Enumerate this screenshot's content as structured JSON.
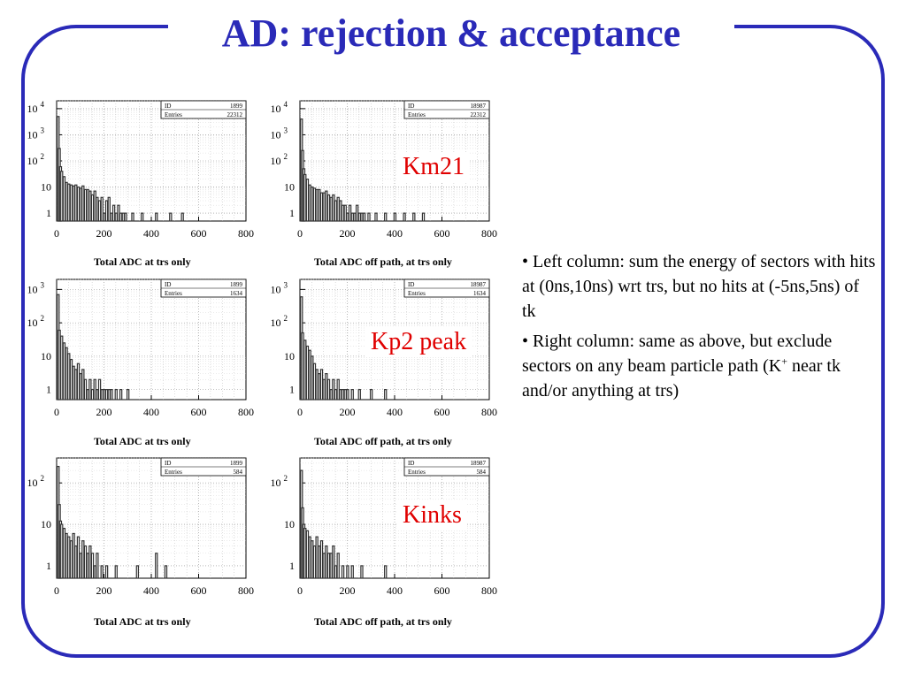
{
  "slide": {
    "title": "AD: rejection & acceptance",
    "frame_color": "#2a2ab8",
    "title_color": "#2a2ab8",
    "tag_color": "#e00000"
  },
  "tags": [
    "Km21",
    "Kp2 peak",
    "Kinks"
  ],
  "bullets": [
    {
      "prefix": "• ",
      "text": "Left column: sum the energy of sectors with hits at (0ns,10ns) wrt trs, but no hits at (-5ns,5ns) of tk"
    },
    {
      "prefix": "• ",
      "text_before_sup": "Right column: same as above, but exclude sectors on any beam particle path (K",
      "sup": "+",
      "text_after_sup": " near tk and/or anything at trs)"
    }
  ],
  "chart_data": [
    {
      "type": "bar",
      "xlabel": "Total ADC at trs only",
      "xlim": [
        0,
        800
      ],
      "x_ticks": [
        "0",
        "200",
        "400",
        "600",
        "800"
      ],
      "y_scale": "log",
      "y_ticks": [
        "1",
        "10",
        "10^2",
        "10^3",
        "10^4"
      ],
      "ylim": [
        0.5,
        20000
      ],
      "grid": true,
      "stats": {
        "ID": "1899",
        "Entries": "22312"
      },
      "x": [
        5,
        10,
        15,
        20,
        30,
        40,
        50,
        60,
        70,
        80,
        90,
        100,
        110,
        120,
        130,
        140,
        150,
        160,
        170,
        180,
        190,
        200,
        210,
        220,
        230,
        240,
        250,
        260,
        270,
        280,
        290,
        320,
        360,
        420,
        480,
        530
      ],
      "values": [
        5000,
        300,
        60,
        40,
        25,
        15,
        13,
        12,
        11,
        12,
        10,
        9,
        11,
        8,
        8,
        7,
        5,
        7,
        4,
        3,
        4,
        1,
        3,
        4,
        1,
        2,
        1,
        2,
        1,
        1,
        1,
        1,
        1,
        1,
        1,
        1
      ]
    },
    {
      "type": "bar",
      "xlabel": "Total ADC off path, at trs only",
      "xlim": [
        0,
        800
      ],
      "x_ticks": [
        "0",
        "200",
        "400",
        "600",
        "800"
      ],
      "y_scale": "log",
      "y_ticks": [
        "1",
        "10",
        "10^2",
        "10^3",
        "10^4"
      ],
      "ylim": [
        0.5,
        20000
      ],
      "grid": true,
      "stats": {
        "ID": "18987",
        "Entries": "22312"
      },
      "x": [
        5,
        10,
        15,
        20,
        30,
        40,
        50,
        60,
        70,
        80,
        90,
        100,
        110,
        120,
        130,
        140,
        150,
        160,
        170,
        180,
        190,
        200,
        210,
        220,
        230,
        240,
        250,
        260,
        270,
        290,
        320,
        360,
        400,
        440,
        480,
        520
      ],
      "values": [
        4000,
        250,
        50,
        30,
        20,
        12,
        10,
        9,
        8,
        8,
        6,
        6,
        7,
        5,
        4,
        5,
        3,
        4,
        3,
        2,
        2,
        1,
        2,
        1,
        1,
        2,
        1,
        1,
        1,
        1,
        1,
        1,
        1,
        1,
        1,
        1
      ]
    },
    {
      "type": "bar",
      "xlabel": "Total ADC at trs only",
      "xlim": [
        0,
        800
      ],
      "x_ticks": [
        "0",
        "200",
        "400",
        "600",
        "800"
      ],
      "y_scale": "log",
      "y_ticks": [
        "1",
        "10",
        "10^2",
        "10^3"
      ],
      "ylim": [
        0.5,
        2000
      ],
      "grid": true,
      "stats": {
        "ID": "1899",
        "Entries": "1634"
      },
      "x": [
        5,
        10,
        20,
        30,
        40,
        50,
        60,
        70,
        80,
        90,
        100,
        110,
        120,
        130,
        140,
        150,
        160,
        170,
        180,
        190,
        200,
        210,
        220,
        230,
        250,
        270,
        300
      ],
      "values": [
        700,
        60,
        40,
        25,
        18,
        12,
        8,
        5,
        4,
        6,
        3,
        4,
        2,
        1,
        2,
        1,
        2,
        1,
        2,
        1,
        1,
        1,
        1,
        1,
        1,
        1,
        1
      ]
    },
    {
      "type": "bar",
      "xlabel": "Total ADC off path, at trs only",
      "xlim": [
        0,
        800
      ],
      "x_ticks": [
        "0",
        "200",
        "400",
        "600",
        "800"
      ],
      "y_scale": "log",
      "y_ticks": [
        "1",
        "10",
        "10^2",
        "10^3"
      ],
      "ylim": [
        0.5,
        2000
      ],
      "grid": true,
      "stats": {
        "ID": "18987",
        "Entries": "1634"
      },
      "x": [
        5,
        10,
        20,
        30,
        40,
        50,
        60,
        70,
        80,
        90,
        100,
        110,
        120,
        130,
        140,
        150,
        160,
        170,
        180,
        190,
        200,
        220,
        250,
        300,
        360
      ],
      "values": [
        600,
        50,
        30,
        20,
        15,
        10,
        6,
        4,
        3,
        4,
        2,
        3,
        2,
        1,
        2,
        1,
        2,
        1,
        1,
        1,
        1,
        1,
        1,
        1,
        1
      ]
    },
    {
      "type": "bar",
      "xlabel": "Total ADC at trs only",
      "xlim": [
        0,
        800
      ],
      "x_ticks": [
        "0",
        "200",
        "400",
        "600",
        "800"
      ],
      "y_scale": "log",
      "y_ticks": [
        "1",
        "10",
        "10^2"
      ],
      "ylim": [
        0.5,
        400
      ],
      "grid": true,
      "stats": {
        "ID": "1899",
        "Entries": "584"
      },
      "x": [
        5,
        10,
        15,
        20,
        30,
        40,
        50,
        60,
        70,
        80,
        90,
        100,
        110,
        120,
        130,
        140,
        150,
        160,
        170,
        190,
        210,
        250,
        340,
        420,
        460
      ],
      "values": [
        250,
        30,
        12,
        10,
        8,
        6,
        5,
        4,
        6,
        3,
        5,
        2,
        4,
        3,
        2,
        3,
        2,
        1,
        2,
        1,
        1,
        1,
        1,
        2,
        1
      ]
    },
    {
      "type": "bar",
      "xlabel": "Total ADC off path, at trs only",
      "xlim": [
        0,
        800
      ],
      "x_ticks": [
        "0",
        "200",
        "400",
        "600",
        "800"
      ],
      "y_scale": "log",
      "y_ticks": [
        "1",
        "10",
        "10^2"
      ],
      "ylim": [
        0.5,
        400
      ],
      "grid": true,
      "stats": {
        "ID": "18987",
        "Entries": "584"
      },
      "x": [
        5,
        10,
        15,
        20,
        30,
        40,
        50,
        60,
        70,
        80,
        90,
        100,
        110,
        120,
        130,
        140,
        150,
        160,
        180,
        200,
        220,
        260,
        360
      ],
      "values": [
        200,
        25,
        10,
        8,
        7,
        5,
        4,
        3,
        5,
        3,
        4,
        2,
        3,
        2,
        2,
        3,
        1,
        2,
        1,
        1,
        1,
        1,
        1
      ]
    }
  ]
}
